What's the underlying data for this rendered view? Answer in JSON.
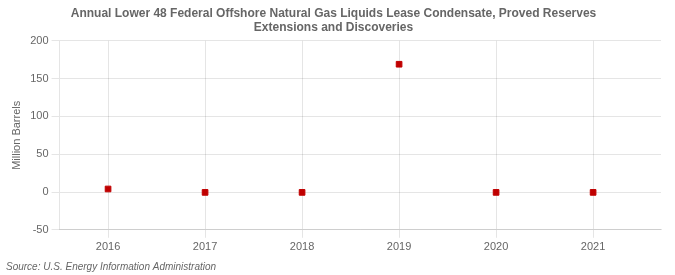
{
  "chart_data": {
    "type": "scatter",
    "title": "Annual Lower 48 Federal Offshore Natural Gas Liquids Lease Condensate, Proved Reserves\nExtensions and Discoveries",
    "ylabel": "Million Barrels",
    "annotations": [
      "Source: U.S. Energy Information Administration"
    ],
    "x": [
      2016,
      2017,
      2018,
      2019,
      2020,
      2021
    ],
    "values": [
      4,
      -0.5,
      -0.5,
      169,
      -0.5,
      -0.5
    ],
    "color": "#c00000",
    "marker": "square",
    "xlim": [
      2015.5,
      2021.7
    ],
    "xticks": [
      2016,
      2017,
      2018,
      2019,
      2020,
      2021
    ],
    "ylim": [
      -50,
      200
    ],
    "yticks": [
      -50,
      0,
      50,
      100,
      150,
      200
    ],
    "grid": true
  }
}
